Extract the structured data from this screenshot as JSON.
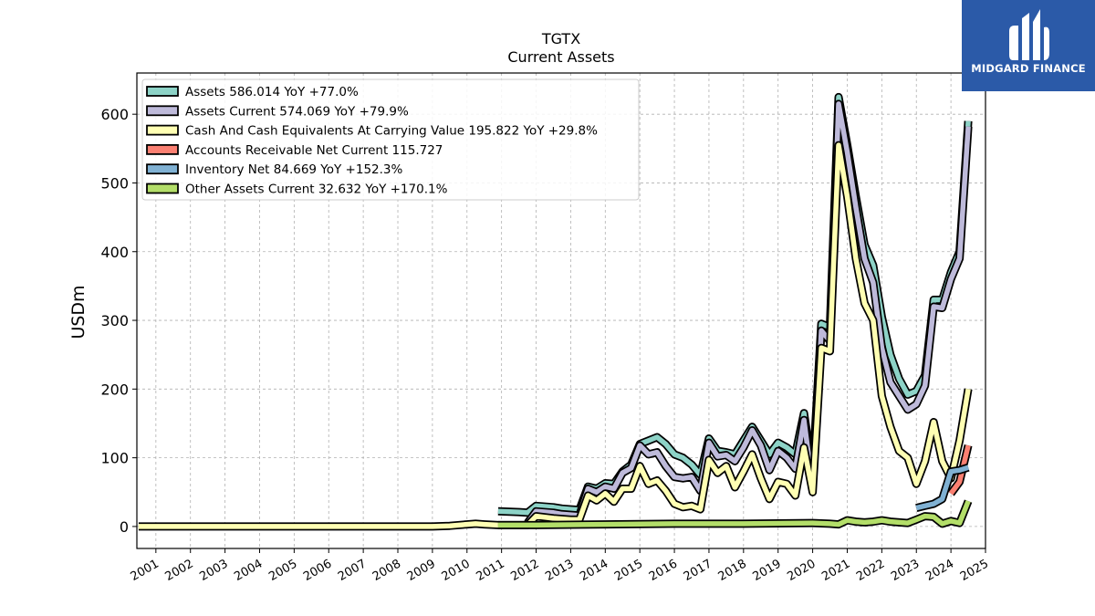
{
  "chart_data": {
    "type": "line",
    "title": "TGTX",
    "subtitle": "Current  Assets",
    "ylabel": "USDm",
    "xlabel": "",
    "ylim": [
      -32,
      660
    ],
    "xlim": [
      2000.45,
      2025.0
    ],
    "yticks": [
      0,
      100,
      200,
      300,
      400,
      500,
      600
    ],
    "xticks": [
      "2001",
      "2002",
      "2003",
      "2004",
      "2005",
      "2006",
      "2007",
      "2008",
      "2009",
      "2010",
      "2011",
      "2012",
      "2013",
      "2014",
      "2015",
      "2016",
      "2017",
      "2018",
      "2019",
      "2020",
      "2021",
      "2022",
      "2023",
      "2024",
      "2025"
    ],
    "grid": true,
    "legend_position": "top-left",
    "series": [
      {
        "name": "Assets  586.014 YoY +77.0%",
        "color": "#8dd3c7",
        "points": [
          [
            2010.9,
            22
          ],
          [
            2011.5,
            21
          ],
          [
            2011.75,
            20
          ],
          [
            2012.0,
            30
          ],
          [
            2012.5,
            28
          ],
          [
            2012.75,
            26
          ],
          [
            2013.0,
            25
          ],
          [
            2013.25,
            24
          ],
          [
            2013.5,
            58
          ],
          [
            2013.75,
            55
          ],
          [
            2014.0,
            63
          ],
          [
            2014.25,
            62
          ],
          [
            2014.5,
            80
          ],
          [
            2014.75,
            90
          ],
          [
            2015.0,
            120
          ],
          [
            2015.25,
            125
          ],
          [
            2015.5,
            130
          ],
          [
            2015.75,
            120
          ],
          [
            2016.0,
            105
          ],
          [
            2016.25,
            100
          ],
          [
            2016.5,
            90
          ],
          [
            2016.75,
            75
          ],
          [
            2017.0,
            128
          ],
          [
            2017.25,
            110
          ],
          [
            2017.5,
            108
          ],
          [
            2017.75,
            105
          ],
          [
            2018.0,
            125
          ],
          [
            2018.25,
            145
          ],
          [
            2018.5,
            125
          ],
          [
            2018.75,
            105
          ],
          [
            2019.0,
            122
          ],
          [
            2019.25,
            115
          ],
          [
            2019.5,
            105
          ],
          [
            2019.75,
            165
          ],
          [
            2020.0,
            80
          ],
          [
            2020.25,
            295
          ],
          [
            2020.5,
            290
          ],
          [
            2020.75,
            625
          ],
          [
            2021.0,
            555
          ],
          [
            2021.25,
            480
          ],
          [
            2021.5,
            410
          ],
          [
            2021.75,
            380
          ],
          [
            2022.0,
            305
          ],
          [
            2022.25,
            250
          ],
          [
            2022.5,
            215
          ],
          [
            2022.75,
            192
          ],
          [
            2023.0,
            197
          ],
          [
            2023.25,
            220
          ],
          [
            2023.5,
            330
          ],
          [
            2023.75,
            330
          ],
          [
            2024.0,
            370
          ],
          [
            2024.25,
            400
          ],
          [
            2024.5,
            590
          ]
        ]
      },
      {
        "name": "Assets Current  574.069 YoY +79.9%",
        "color": "#bebada",
        "points": [
          [
            2011.75,
            5
          ],
          [
            2012.0,
            22
          ],
          [
            2012.5,
            20
          ],
          [
            2012.75,
            18
          ],
          [
            2013.0,
            17
          ],
          [
            2013.25,
            16
          ],
          [
            2013.5,
            55
          ],
          [
            2013.75,
            50
          ],
          [
            2014.0,
            58
          ],
          [
            2014.25,
            55
          ],
          [
            2014.5,
            78
          ],
          [
            2014.75,
            85
          ],
          [
            2015.0,
            118
          ],
          [
            2015.25,
            105
          ],
          [
            2015.5,
            108
          ],
          [
            2015.75,
            88
          ],
          [
            2016.0,
            72
          ],
          [
            2016.25,
            70
          ],
          [
            2016.5,
            72
          ],
          [
            2016.75,
            52
          ],
          [
            2017.0,
            122
          ],
          [
            2017.25,
            102
          ],
          [
            2017.5,
            104
          ],
          [
            2017.75,
            95
          ],
          [
            2018.0,
            115
          ],
          [
            2018.25,
            140
          ],
          [
            2018.5,
            118
          ],
          [
            2018.75,
            82
          ],
          [
            2019.0,
            110
          ],
          [
            2019.25,
            100
          ],
          [
            2019.5,
            84
          ],
          [
            2019.75,
            155
          ],
          [
            2020.0,
            58
          ],
          [
            2020.25,
            285
          ],
          [
            2020.5,
            270
          ],
          [
            2020.75,
            615
          ],
          [
            2021.0,
            545
          ],
          [
            2021.25,
            465
          ],
          [
            2021.5,
            390
          ],
          [
            2021.75,
            355
          ],
          [
            2022.0,
            260
          ],
          [
            2022.25,
            210
          ],
          [
            2022.5,
            190
          ],
          [
            2022.75,
            170
          ],
          [
            2023.0,
            178
          ],
          [
            2023.25,
            205
          ],
          [
            2023.5,
            320
          ],
          [
            2023.75,
            318
          ],
          [
            2024.0,
            360
          ],
          [
            2024.25,
            390
          ],
          [
            2024.5,
            582
          ]
        ]
      },
      {
        "name": "Cash And Cash Equivalents At Carrying Value  195.822 YoY +29.8%",
        "color": "#ffffb3",
        "points": [
          [
            2000.5,
            0
          ],
          [
            2009.0,
            0
          ],
          [
            2009.5,
            1
          ],
          [
            2010.0,
            3
          ],
          [
            2010.25,
            4
          ],
          [
            2010.5,
            3
          ],
          [
            2010.9,
            2
          ],
          [
            2011.75,
            2
          ],
          [
            2012.0,
            15
          ],
          [
            2012.5,
            12
          ],
          [
            2012.75,
            11
          ],
          [
            2013.0,
            10
          ],
          [
            2013.25,
            10
          ],
          [
            2013.5,
            45
          ],
          [
            2013.75,
            38
          ],
          [
            2014.0,
            48
          ],
          [
            2014.25,
            36
          ],
          [
            2014.5,
            55
          ],
          [
            2014.75,
            55
          ],
          [
            2015.0,
            88
          ],
          [
            2015.25,
            62
          ],
          [
            2015.5,
            67
          ],
          [
            2015.75,
            52
          ],
          [
            2016.0,
            33
          ],
          [
            2016.25,
            28
          ],
          [
            2016.5,
            30
          ],
          [
            2016.75,
            25
          ],
          [
            2017.0,
            97
          ],
          [
            2017.25,
            78
          ],
          [
            2017.5,
            88
          ],
          [
            2017.75,
            57
          ],
          [
            2018.0,
            80
          ],
          [
            2018.25,
            105
          ],
          [
            2018.5,
            70
          ],
          [
            2018.75,
            40
          ],
          [
            2019.0,
            65
          ],
          [
            2019.25,
            62
          ],
          [
            2019.5,
            45
          ],
          [
            2019.75,
            115
          ],
          [
            2020.0,
            50
          ],
          [
            2020.25,
            260
          ],
          [
            2020.5,
            255
          ],
          [
            2020.75,
            555
          ],
          [
            2021.0,
            480
          ],
          [
            2021.25,
            390
          ],
          [
            2021.5,
            325
          ],
          [
            2021.75,
            300
          ],
          [
            2022.0,
            190
          ],
          [
            2022.25,
            145
          ],
          [
            2022.5,
            110
          ],
          [
            2022.75,
            100
          ],
          [
            2023.0,
            62
          ],
          [
            2023.25,
            95
          ],
          [
            2023.5,
            152
          ],
          [
            2023.75,
            95
          ],
          [
            2024.0,
            70
          ],
          [
            2024.25,
            125
          ],
          [
            2024.5,
            200
          ]
        ]
      },
      {
        "name": "Accounts Receivable Net Current  115.727",
        "color": "#fb8072",
        "points": [
          [
            2024.0,
            48
          ],
          [
            2024.25,
            65
          ],
          [
            2024.5,
            118
          ]
        ]
      },
      {
        "name": "Inventory Net  84.669 YoY +152.3%",
        "color": "#80b1d3",
        "points": [
          [
            2023.0,
            27
          ],
          [
            2023.25,
            30
          ],
          [
            2023.5,
            33
          ],
          [
            2023.75,
            40
          ],
          [
            2024.0,
            80
          ],
          [
            2024.25,
            82
          ],
          [
            2024.5,
            86
          ]
        ]
      },
      {
        "name": "Other Assets Current  32.632 YoY +170.1%",
        "color": "#b3de69",
        "points": [
          [
            2010.9,
            2
          ],
          [
            2012.0,
            2
          ],
          [
            2014.0,
            3
          ],
          [
            2016.0,
            4
          ],
          [
            2018.0,
            4
          ],
          [
            2020.0,
            5
          ],
          [
            2020.5,
            4
          ],
          [
            2020.75,
            3
          ],
          [
            2021.0,
            9
          ],
          [
            2021.25,
            7
          ],
          [
            2021.5,
            6
          ],
          [
            2021.75,
            7
          ],
          [
            2022.0,
            9
          ],
          [
            2022.25,
            7
          ],
          [
            2022.5,
            6
          ],
          [
            2022.75,
            5
          ],
          [
            2023.0,
            10
          ],
          [
            2023.25,
            15
          ],
          [
            2023.5,
            14
          ],
          [
            2023.75,
            4
          ],
          [
            2024.0,
            8
          ],
          [
            2024.25,
            5
          ],
          [
            2024.5,
            37
          ]
        ]
      }
    ]
  },
  "logo": {
    "text": "MIDGARD FINANCE"
  }
}
